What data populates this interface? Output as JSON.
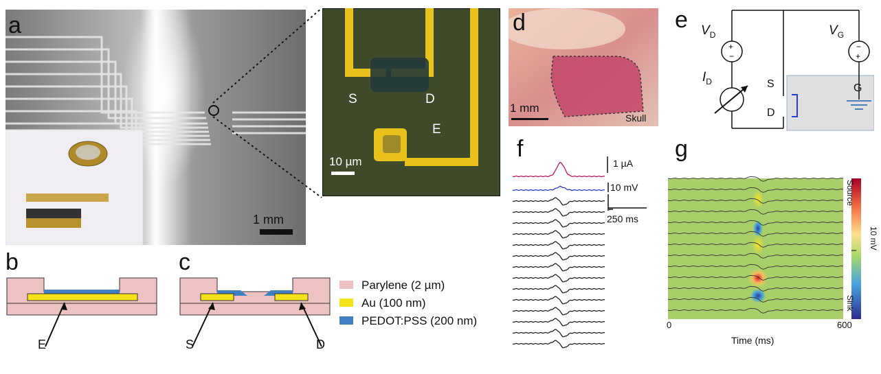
{
  "panels": {
    "a": {
      "letter": "a",
      "scalebar": "1 mm"
    },
    "micro": {
      "scalebar": "10 µm",
      "source": "S",
      "drain": "D",
      "electrode": "E"
    },
    "b": {
      "letter": "b",
      "label_e": "E"
    },
    "c": {
      "letter": "c",
      "label_s": "S",
      "label_d": "D"
    },
    "d": {
      "letter": "d",
      "scalebar": "1 mm",
      "skull": "Skull"
    },
    "e": {
      "letter": "e",
      "vd": "V",
      "vd_sub": "D",
      "vg": "V",
      "vg_sub": "G",
      "id": "I",
      "id_sub": "D",
      "s": "S",
      "d": "D",
      "g": "G"
    },
    "f": {
      "letter": "f",
      "scale_current": "1 µA",
      "scale_voltage": "10 mV",
      "scale_time": "250 ms"
    },
    "g": {
      "letter": "g",
      "x_min": "0",
      "x_max": "600",
      "xlabel": "Time (ms)",
      "colorbar_top": "Source",
      "colorbar_mid": "10 mV",
      "colorbar_bottom": "Sink"
    }
  },
  "legend": [
    {
      "label": "Parylene (2 µm)",
      "color": "#eec2c2"
    },
    {
      "label": "Au (100 nm)",
      "color": "#f3e21a"
    },
    {
      "label": "PEDOT:PSS (200 nm)",
      "color": "#3f7fc2"
    }
  ],
  "colors": {
    "gold": "#e8c21a",
    "trace_red": "#c2185b",
    "trace_blue": "#2b3ccf",
    "tissue": "#d98f8f"
  }
}
